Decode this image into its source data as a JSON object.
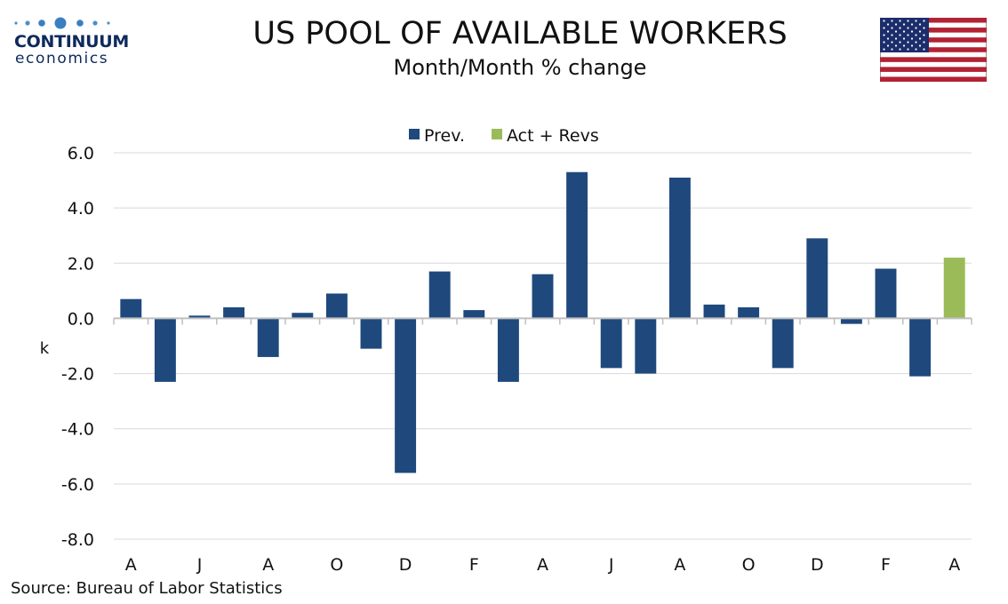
{
  "logo": {
    "brand": "CONTINUUM",
    "tagline": "economics",
    "icon": "continuum-dots-logo"
  },
  "flag": {
    "icon": "us-flag-icon"
  },
  "header": {
    "title": "US POOL OF AVAILABLE WORKERS",
    "subtitle": "Month/Month % change"
  },
  "source": "Source: Bureau of Labor Statistics",
  "colors": {
    "prev": "#1f497d",
    "act": "#9bbb59",
    "grid": "#d9d9d9",
    "axis": "#bfbfbf"
  },
  "chart_data": {
    "type": "bar",
    "ylabel": "k",
    "ylim": [
      -8,
      6
    ],
    "yticks": [
      "6.0",
      "4.0",
      "2.0",
      "0.0",
      "-2.0",
      "-4.0",
      "-6.0",
      "-8.0"
    ],
    "ytick_values": [
      6,
      4,
      2,
      0,
      -2,
      -4,
      -6,
      -8
    ],
    "grid": true,
    "legend_position": "top-center",
    "x_tick_labels": [
      "A",
      "J",
      "A",
      "O",
      "D",
      "F",
      "A",
      "J",
      "A",
      "O",
      "D",
      "F",
      "A"
    ],
    "series": [
      {
        "name": "Prev.",
        "values": [
          0.7,
          -2.3,
          0.1,
          0.4,
          -1.4,
          0.2,
          0.9,
          -1.1,
          -5.6,
          1.7,
          0.3,
          -2.3,
          1.6,
          5.3,
          -1.8,
          -2.0,
          5.1,
          0.5,
          0.4,
          -1.8,
          2.9,
          -0.2,
          1.8,
          -2.1,
          null
        ]
      },
      {
        "name": "Act + Revs",
        "values": [
          null,
          null,
          null,
          null,
          null,
          null,
          null,
          null,
          null,
          null,
          null,
          null,
          null,
          null,
          null,
          null,
          null,
          null,
          null,
          null,
          null,
          null,
          null,
          null,
          2.2
        ]
      }
    ]
  }
}
